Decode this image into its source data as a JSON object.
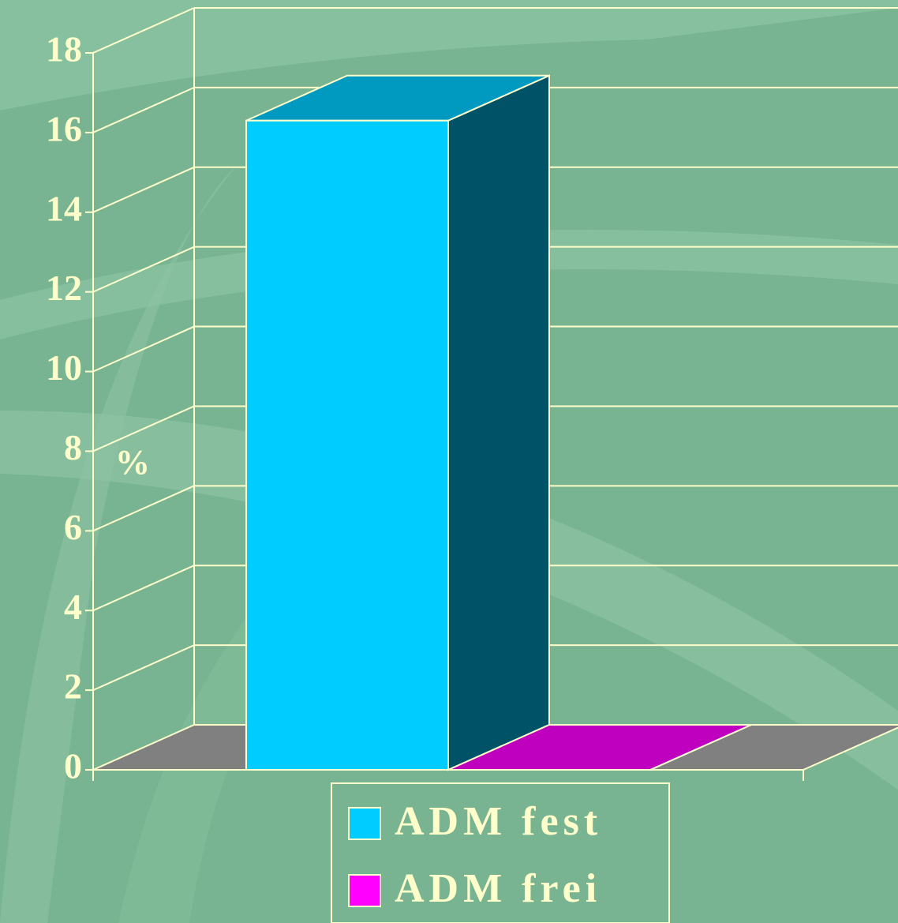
{
  "chart_data": {
    "type": "bar3d",
    "categories": [
      null
    ],
    "series": [
      {
        "name": "ADM fest",
        "color": "#00ccff",
        "values": [
          16.3
        ]
      },
      {
        "name": "ADM frei",
        "color": "#ff00ff",
        "values": [
          0
        ]
      }
    ],
    "y_label": "%",
    "ylim": [
      0,
      18
    ],
    "yticks": [
      0,
      2,
      4,
      6,
      8,
      10,
      12,
      14,
      16,
      18
    ],
    "grid": true
  }
}
